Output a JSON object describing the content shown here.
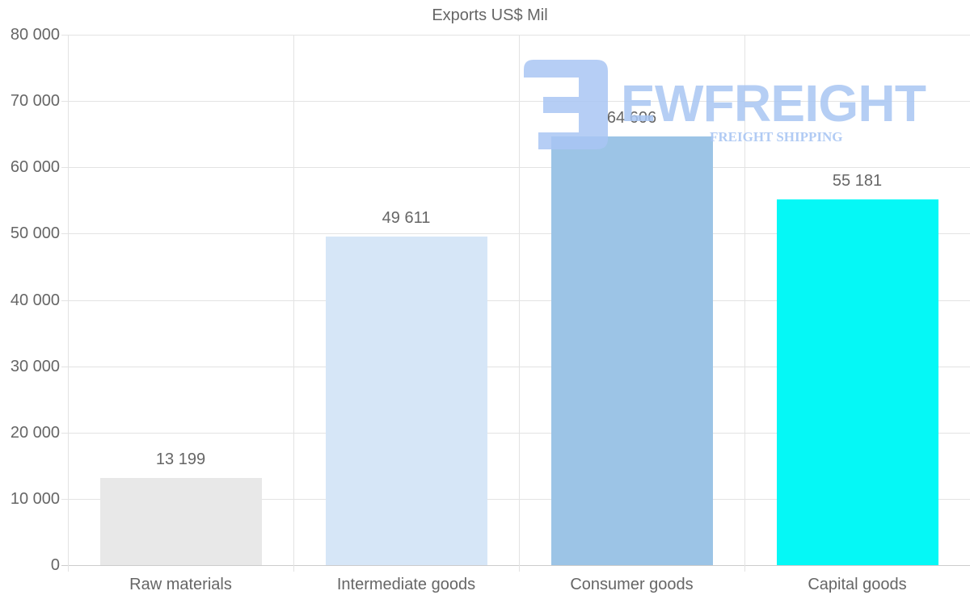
{
  "chart_data": {
    "type": "bar",
    "title": "Exports US$ Mil",
    "xlabel": "",
    "ylabel": "",
    "categories": [
      "Raw materials",
      "Intermediate goods",
      "Consumer goods",
      "Capital goods"
    ],
    "values": [
      13199,
      49611,
      64606,
      55181
    ],
    "value_labels": [
      "13 199",
      "49 611",
      "64 606",
      "55 181"
    ],
    "bar_colors": [
      "#e8e8e8",
      "#d6e6f7",
      "#9cc4e6",
      "#05f8f6"
    ],
    "ylim": [
      0,
      80000
    ],
    "yticks": [
      0,
      10000,
      20000,
      30000,
      40000,
      50000,
      60000,
      70000,
      80000
    ],
    "ytick_labels": [
      "0",
      "10 000",
      "20 000",
      "30 000",
      "40 000",
      "50 000",
      "60 000",
      "70 000",
      "80 000"
    ],
    "grid": true,
    "legend": null
  },
  "watermark": {
    "brand": "EWFREIGHT",
    "tagline": "FREIGHT SHIPPING",
    "color": "#a9c6f3"
  }
}
